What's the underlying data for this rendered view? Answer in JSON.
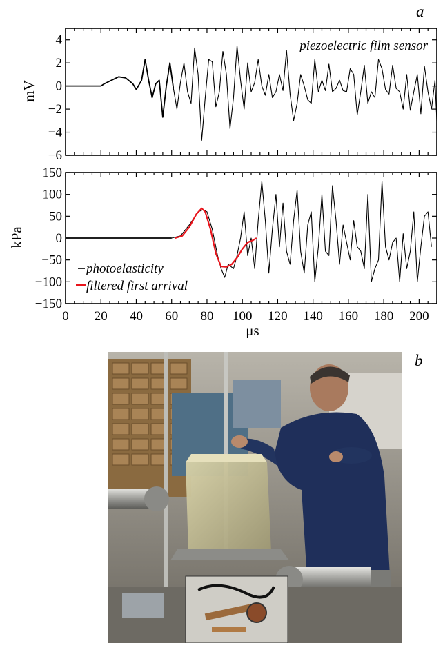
{
  "panels": {
    "a_label": "a",
    "b_label": "b"
  },
  "chart_data": [
    {
      "type": "line",
      "annotation": "piezoelectric film sensor",
      "ylabel": "mV",
      "xlabel": "",
      "xlim": [
        0,
        210
      ],
      "ylim": [
        -6,
        5
      ],
      "x_ticks": [
        0,
        20,
        40,
        60,
        80,
        100,
        120,
        140,
        160,
        180,
        200
      ],
      "y_ticks": [
        -6,
        -4,
        -2,
        0,
        2,
        4
      ],
      "y_tick_labels": [
        "−6",
        "−4",
        "−2",
        "0",
        "2",
        "4"
      ],
      "grid": false,
      "series": [
        {
          "color": "#000000",
          "x": [
            0,
            10,
            20,
            22,
            26,
            30,
            34,
            38,
            40,
            43,
            45,
            47,
            49,
            51,
            53,
            55,
            57,
            59,
            61,
            63,
            65,
            67,
            69,
            71,
            73,
            75,
            77,
            79,
            81,
            83,
            85,
            87,
            89,
            91,
            93,
            95,
            97,
            99,
            101,
            103,
            105,
            107,
            109,
            111,
            113,
            115,
            117,
            119,
            121,
            123,
            125,
            127,
            129,
            131,
            133,
            135,
            137,
            139,
            141,
            143,
            145,
            147,
            149,
            151,
            153,
            155,
            157,
            159,
            161,
            163,
            165,
            167,
            169,
            171,
            173,
            175,
            177,
            179,
            181,
            183,
            185,
            187,
            189,
            191,
            193,
            195,
            197,
            199,
            201,
            203,
            205,
            207,
            209,
            210
          ],
          "y": [
            0,
            0,
            0,
            0.2,
            0.5,
            0.8,
            0.7,
            0.2,
            -0.3,
            0.5,
            2.3,
            0.5,
            -1.0,
            0.2,
            0.5,
            -2.7,
            0,
            2.0,
            -0.2,
            -2.0,
            0.3,
            2.0,
            -0.5,
            -1.5,
            3.3,
            1.0,
            -4.7,
            -1.0,
            2.3,
            2.1,
            -1.8,
            -0.5,
            3.0,
            1.0,
            -3.7,
            -1.0,
            3.5,
            0.5,
            -2.0,
            2.0,
            -0.5,
            0.3,
            2.3,
            0,
            -0.8,
            1.0,
            -1.0,
            -0.5,
            1.0,
            -0.4,
            3.1,
            -0.7,
            -3.0,
            -1.5,
            1.0,
            0,
            -1.2,
            -1.5,
            2.3,
            -0.5,
            0.5,
            -0.4,
            1.9,
            -0.5,
            -0.2,
            0.5,
            -0.4,
            -0.5,
            1.5,
            1.0,
            -2.5,
            -0.5,
            1.8,
            -1.5,
            -0.5,
            -1.0,
            2.3,
            1.5,
            -0.3,
            -0.7,
            1.8,
            -0.2,
            -0.5,
            -2.0,
            1.0,
            -2.1,
            -0.5,
            1.0,
            -2.4,
            1.7,
            -0.5,
            -2.0,
            0.5,
            -3.0
          ]
        }
      ]
    },
    {
      "type": "line",
      "ylabel": "kPa",
      "xlabel": "μs",
      "xlim": [
        0,
        210
      ],
      "ylim": [
        -150,
        150
      ],
      "x_ticks": [
        0,
        20,
        40,
        60,
        80,
        100,
        120,
        140,
        160,
        180,
        200
      ],
      "y_ticks": [
        -150,
        -100,
        -50,
        0,
        50,
        100,
        150
      ],
      "y_tick_labels": [
        "−150",
        "−100",
        "−50",
        "0",
        "50",
        "100",
        "150"
      ],
      "grid": false,
      "legend": "lower-left",
      "series": [
        {
          "name": "photoelasticity",
          "color": "#000000",
          "x": [
            0,
            20,
            40,
            60,
            65,
            70,
            75,
            78,
            80,
            83,
            86,
            88,
            90,
            92,
            95,
            97,
            99,
            101,
            103,
            105,
            107,
            109,
            111,
            113,
            115,
            117,
            119,
            121,
            123,
            125,
            127,
            129,
            131,
            133,
            135,
            137,
            139,
            141,
            143,
            145,
            147,
            149,
            151,
            153,
            155,
            157,
            159,
            161,
            163,
            165,
            167,
            169,
            171,
            173,
            175,
            177,
            179,
            181,
            183,
            185,
            187,
            189,
            191,
            193,
            195,
            197,
            199,
            201,
            203,
            205,
            207
          ],
          "y": [
            0,
            0,
            0,
            0,
            5,
            30,
            60,
            65,
            60,
            20,
            -40,
            -70,
            -90,
            -60,
            -70,
            -40,
            0,
            60,
            -40,
            0,
            -70,
            40,
            130,
            40,
            -80,
            20,
            100,
            -20,
            80,
            -30,
            -60,
            40,
            110,
            -30,
            -80,
            30,
            60,
            -100,
            -20,
            100,
            -30,
            -40,
            120,
            40,
            -60,
            30,
            -10,
            -50,
            40,
            -20,
            -30,
            -70,
            100,
            -100,
            -70,
            -50,
            130,
            -20,
            -50,
            -10,
            0,
            -100,
            10,
            -70,
            -30,
            60,
            -100,
            -20,
            50,
            60,
            -20
          ]
        },
        {
          "name": "filtered first arrival",
          "color": "#e8141b",
          "x": [
            62,
            66,
            70,
            74,
            77,
            79,
            82,
            85,
            88,
            91,
            94,
            97,
            100,
            103,
            106,
            108
          ],
          "y": [
            0,
            5,
            25,
            55,
            68,
            60,
            20,
            -35,
            -65,
            -66,
            -60,
            -45,
            -25,
            -10,
            -5,
            0
          ]
        }
      ]
    }
  ]
}
